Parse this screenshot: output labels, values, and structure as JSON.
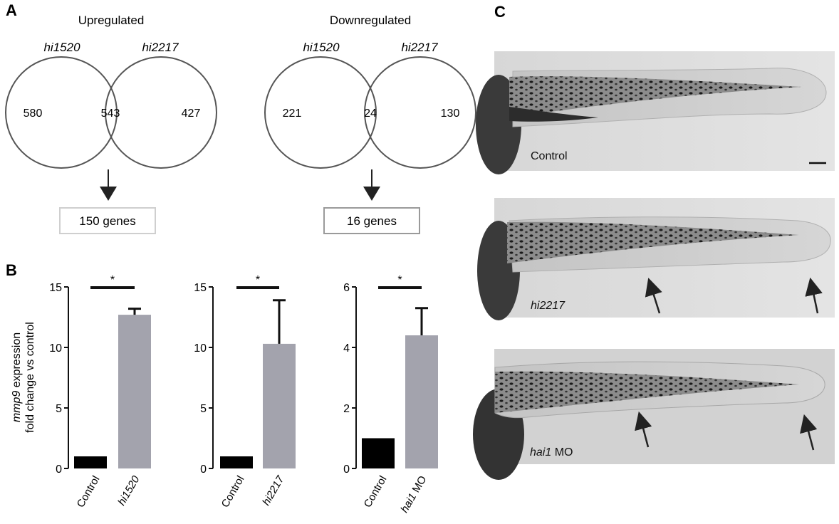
{
  "panels": {
    "a": "A",
    "b": "B",
    "c": "C"
  },
  "venn": [
    {
      "title": "Upregulated",
      "set_left": "hi1520",
      "set_right": "hi2217",
      "left_only": "580",
      "overlap": "543",
      "right_only": "427",
      "result": "150 genes",
      "box_border": "#cfcfcf"
    },
    {
      "title": "Downregulated",
      "set_left": "hi1520",
      "set_right": "hi2217",
      "left_only": "221",
      "overlap": "24",
      "right_only": "130",
      "result": "16 genes",
      "box_border": "#9a9a9a"
    }
  ],
  "ylabel": {
    "gene": "mmp9",
    "line1_rest": " expression",
    "line2": "fold change vs control"
  },
  "colors": {
    "control_bar": "#000000",
    "treated_bar": "#a3a3ad",
    "circle": "#555555"
  },
  "chart_data": [
    {
      "type": "bar",
      "categories": [
        "Control",
        "hi1520"
      ],
      "values": [
        1.0,
        12.7
      ],
      "errors": [
        0,
        0.5
      ],
      "ylim": [
        0,
        15
      ],
      "yticks": [
        "0",
        "5",
        "10",
        "15"
      ],
      "significance": "*"
    },
    {
      "type": "bar",
      "categories": [
        "Control",
        "hi2217"
      ],
      "values": [
        1.0,
        10.3
      ],
      "errors": [
        0,
        3.6
      ],
      "ylim": [
        0,
        15
      ],
      "yticks": [
        "0",
        "5",
        "10",
        "15"
      ],
      "significance": "*"
    },
    {
      "type": "bar",
      "categories": [
        "Control",
        "hai1 MO"
      ],
      "values": [
        1.0,
        4.4
      ],
      "errors": [
        0,
        0.9
      ],
      "ylim": [
        0,
        6
      ],
      "yticks": [
        "0",
        "2",
        "4",
        "6"
      ],
      "significance": "*"
    }
  ],
  "micrographs": [
    {
      "label": "Control",
      "italic": false
    },
    {
      "label": "hi2217",
      "italic": true
    },
    {
      "label_gene": "hai1",
      "label_rest": " MO"
    }
  ],
  "cat_labels": {
    "c1": "Control",
    "t1": "hi1520",
    "c2": "Control",
    "t2": "hi2217",
    "c3": "Control",
    "t3_gene": "hai1",
    "t3_rest": " MO"
  }
}
